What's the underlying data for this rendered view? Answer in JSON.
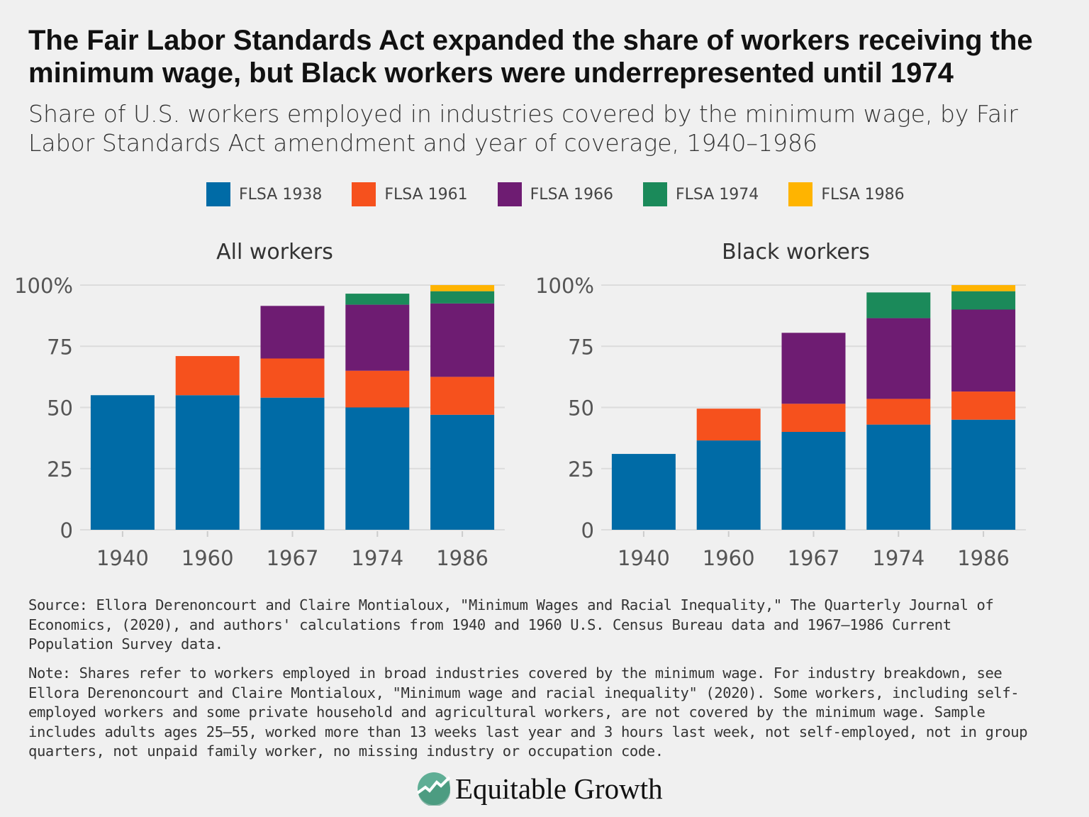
{
  "title": "The Fair Labor Standards Act expanded the share of workers receiving the minimum wage, but Black workers were underrepresented until 1974",
  "subtitle": "Share of U.S. workers employed in industries covered by the minimum wage, by Fair Labor Standards Act amendment and year of coverage, 1940–1986",
  "legend": [
    {
      "label": "FLSA 1938",
      "color": "#006ba6"
    },
    {
      "label": "FLSA 1961",
      "color": "#f6511d"
    },
    {
      "label": "FLSA 1966",
      "color": "#6e1c72"
    },
    {
      "label": "FLSA 1974",
      "color": "#1b8a5a"
    },
    {
      "label": "FLSA 1986",
      "color": "#ffb400"
    }
  ],
  "chart_data": [
    {
      "type": "bar",
      "stacked": true,
      "title": "All workers",
      "categories": [
        "1940",
        "1960",
        "1967",
        "1974",
        "1986"
      ],
      "ylim": [
        0,
        100
      ],
      "yticks": [
        "0",
        "25",
        "50",
        "75",
        "100%"
      ],
      "grid": true,
      "legend_position": "top",
      "series": [
        {
          "name": "FLSA 1938",
          "values": [
            55,
            55,
            54,
            50,
            47
          ]
        },
        {
          "name": "FLSA 1961",
          "values": [
            0,
            16,
            16,
            15,
            15.5
          ]
        },
        {
          "name": "FLSA 1966",
          "values": [
            0,
            0,
            21.5,
            27,
            30
          ]
        },
        {
          "name": "FLSA 1974",
          "values": [
            0,
            0,
            0,
            4.5,
            5
          ]
        },
        {
          "name": "FLSA 1986",
          "values": [
            0,
            0,
            0,
            0,
            2.5
          ]
        }
      ]
    },
    {
      "type": "bar",
      "stacked": true,
      "title": "Black workers",
      "categories": [
        "1940",
        "1960",
        "1967",
        "1974",
        "1986"
      ],
      "ylim": [
        0,
        100
      ],
      "yticks": [
        "0",
        "25",
        "50",
        "75",
        "100%"
      ],
      "grid": true,
      "legend_position": "top",
      "series": [
        {
          "name": "FLSA 1938",
          "values": [
            31,
            36.5,
            40,
            43,
            45
          ]
        },
        {
          "name": "FLSA 1961",
          "values": [
            0,
            13,
            11.5,
            10.5,
            11.5
          ]
        },
        {
          "name": "FLSA 1966",
          "values": [
            0,
            0,
            29,
            33,
            33.5
          ]
        },
        {
          "name": "FLSA 1974",
          "values": [
            0,
            0,
            0,
            10.5,
            7.5
          ]
        },
        {
          "name": "FLSA 1986",
          "values": [
            0,
            0,
            0,
            0,
            2.5
          ]
        }
      ]
    }
  ],
  "source": "Source: Ellora Derenoncourt and Claire Montialoux, \"Minimum Wages and Racial Inequality,\" The Quarterly Journal of Economics, (2020), and authors' calculations from 1940 and 1960 U.S. Census Bureau data and 1967–1986 Current Population Survey data.",
  "note": "Note: Shares refer to workers employed in broad industries covered by the minimum wage. For industry breakdown, see Ellora Derenoncourt and Claire Montialoux, \"Minimum wage and racial inequality\" (2020). Some workers, including self-employed workers and some private household and agricultural workers, are not covered by the minimum wage. Sample includes adults ages 25–55, worked more than 13 weeks last year and 3 hours last week, not self-employed, not in group quarters, not unpaid family worker, no missing industry or occupation code.",
  "logo": "Equitable Growth"
}
